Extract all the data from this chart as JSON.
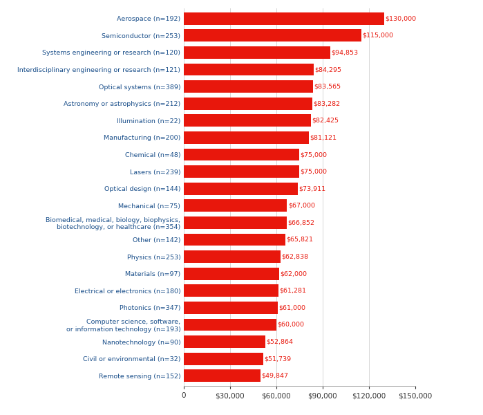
{
  "categories": [
    "Aerospace (n=192)",
    "Semiconductor (n=253)",
    "Systems engineering or research (n=120)",
    "Interdisciplinary engineering or research (n=121)",
    "Optical systems (n=389)",
    "Astronomy or astrophysics (n=212)",
    "Illumination (n=22)",
    "Manufacturing (n=200)",
    "Chemical (n=48)",
    "Lasers (n=239)",
    "Optical design (n=144)",
    "Mechanical (n=75)",
    "Biomedical, medical, biology, biophysics,\nbiotechnology, or healthcare (n=354)",
    "Other (n=142)",
    "Physics (n=253)",
    "Materials (n=97)",
    "Electrical or electronics (n=180)",
    "Photonics (n=347)",
    "Computer science, software,\nor information technology (n=193)",
    "Nanotechnology (n=90)",
    "Civil or environmental (n=32)",
    "Remote sensing (n=152)"
  ],
  "values": [
    130000,
    115000,
    94853,
    84295,
    83565,
    83282,
    82425,
    81121,
    75000,
    75000,
    73911,
    67000,
    66852,
    65821,
    62838,
    62000,
    61281,
    61000,
    60000,
    52864,
    51739,
    49847
  ],
  "bar_color": "#e8170c",
  "tick_label_color": "#1a4f8a",
  "value_label_color": "#e8170c",
  "background_color": "#ffffff",
  "xlim": [
    0,
    150000
  ],
  "xticks": [
    0,
    30000,
    60000,
    90000,
    120000,
    150000
  ],
  "bar_height": 0.72,
  "ytick_fontsize": 6.8,
  "xtick_fontsize": 7.5,
  "value_fontsize": 6.8
}
